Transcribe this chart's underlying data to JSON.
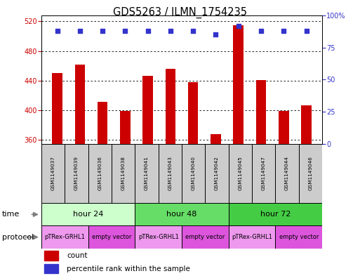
{
  "title": "GDS5263 / ILMN_1754235",
  "samples": [
    "GSM1149037",
    "GSM1149039",
    "GSM1149036",
    "GSM1149038",
    "GSM1149041",
    "GSM1149043",
    "GSM1149040",
    "GSM1149042",
    "GSM1149045",
    "GSM1149047",
    "GSM1149044",
    "GSM1149046"
  ],
  "counts": [
    450,
    462,
    412,
    399,
    447,
    456,
    438,
    368,
    515,
    441,
    399,
    407
  ],
  "percentile_ranks": [
    88,
    88,
    88,
    88,
    88,
    88,
    88,
    85,
    92,
    88,
    88,
    88
  ],
  "ylim_left": [
    355,
    528
  ],
  "ylim_right": [
    0,
    100
  ],
  "yticks_left": [
    360,
    400,
    440,
    480,
    520
  ],
  "yticks_right": [
    0,
    25,
    50,
    75,
    100
  ],
  "ytick_right_labels": [
    "0",
    "25",
    "50",
    "75",
    "100%"
  ],
  "bar_color": "#CC0000",
  "dot_color": "#3333CC",
  "bar_width": 0.45,
  "time_groups": [
    {
      "label": "hour 24",
      "start": 0,
      "end": 4,
      "color": "#CCFFCC"
    },
    {
      "label": "hour 48",
      "start": 4,
      "end": 8,
      "color": "#66DD66"
    },
    {
      "label": "hour 72",
      "start": 8,
      "end": 12,
      "color": "#44CC44"
    }
  ],
  "protocol_groups": [
    {
      "label": "pTRex-GRHL1",
      "start": 0,
      "end": 2,
      "color": "#EE99EE"
    },
    {
      "label": "empty vector",
      "start": 2,
      "end": 4,
      "color": "#DD55DD"
    },
    {
      "label": "pTRex-GRHL1",
      "start": 4,
      "end": 6,
      "color": "#EE99EE"
    },
    {
      "label": "empty vector",
      "start": 6,
      "end": 8,
      "color": "#DD55DD"
    },
    {
      "label": "pTRex-GRHL1",
      "start": 8,
      "end": 10,
      "color": "#EE99EE"
    },
    {
      "label": "empty vector",
      "start": 10,
      "end": 12,
      "color": "#DD55DD"
    }
  ],
  "bg_color": "#FFFFFF",
  "plot_bg_color": "#FFFFFF",
  "grid_color": "#000000",
  "left_axis_color": "#CC0000",
  "right_axis_color": "#3333CC",
  "sample_box_color": "#CCCCCC",
  "legend_items": [
    {
      "label": "count",
      "color": "#CC0000"
    },
    {
      "label": "percentile rank within the sample",
      "color": "#3333CC"
    }
  ]
}
